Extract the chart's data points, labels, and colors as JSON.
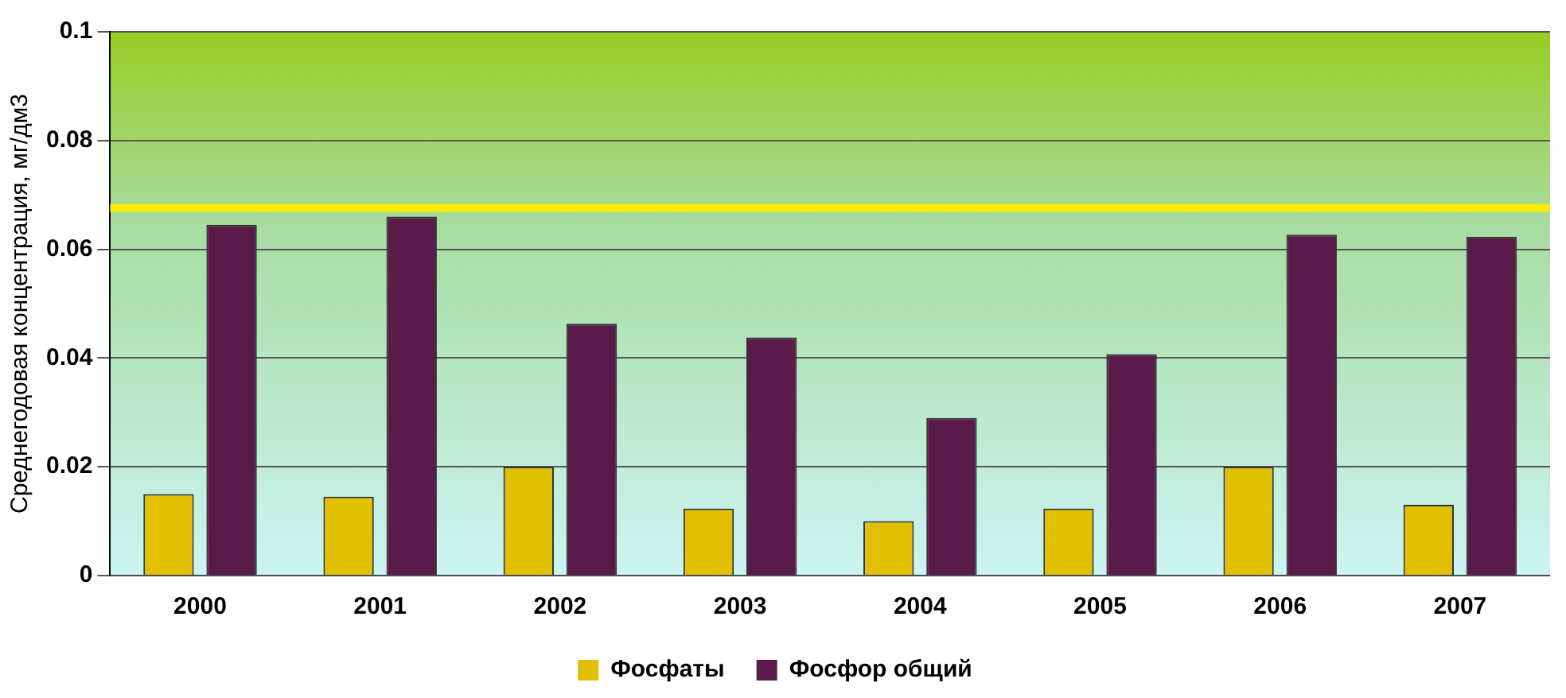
{
  "chart_data": {
    "type": "bar",
    "ylabel": "Среднегодовая концентрация, мг/дм3",
    "categories": [
      "2000",
      "2001",
      "2002",
      "2003",
      "2004",
      "2005",
      "2006",
      "2007"
    ],
    "series": [
      {
        "name": "Фосфаты",
        "color": "#e0c000",
        "values": [
          0.015,
          0.0145,
          0.02,
          0.0123,
          0.01,
          0.0123,
          0.02,
          0.013
        ]
      },
      {
        "name": "Фосфор общий",
        "color": "#5a1a4a",
        "values": [
          0.0645,
          0.066,
          0.0463,
          0.0438,
          0.029,
          0.0407,
          0.0627,
          0.0623
        ]
      }
    ],
    "ylim": [
      0,
      0.1
    ],
    "yticks": [
      0,
      0.02,
      0.04,
      0.06,
      0.08,
      0.1
    ],
    "grid": "y",
    "legend": "bottom",
    "ref_lines": [
      {
        "axis": "y",
        "value": 0.0676,
        "color": "#ffee00"
      }
    ]
  }
}
